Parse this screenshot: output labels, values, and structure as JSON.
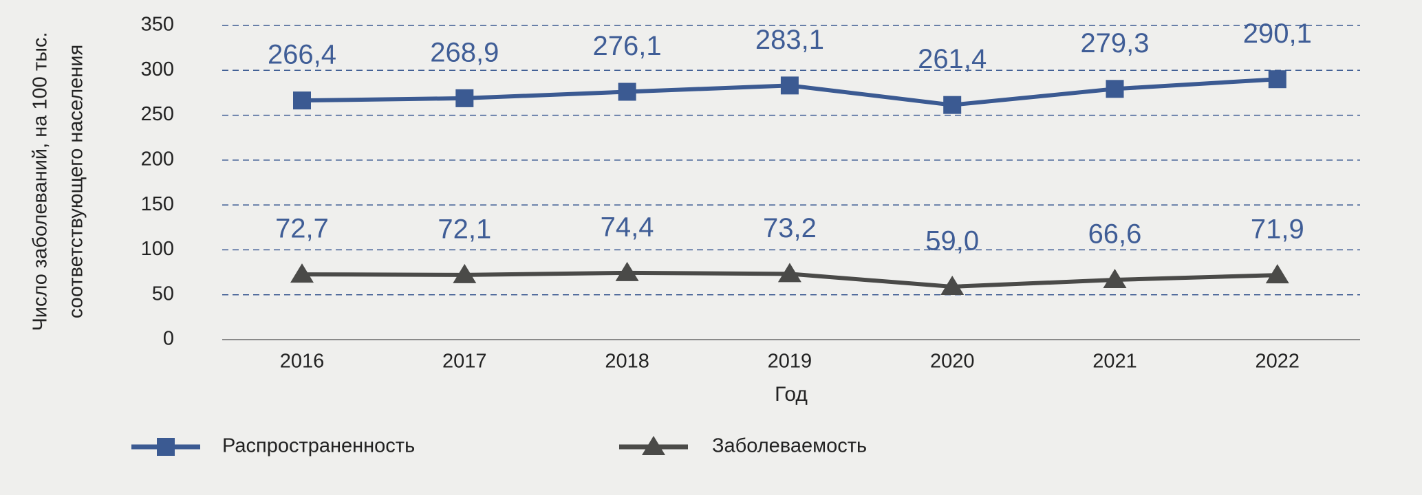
{
  "chart_data": {
    "type": "line",
    "ylabel": [
      "Число заболеваний, на 100 тыс.",
      "соответствующего населения"
    ],
    "xlabel": "Год",
    "categories": [
      "2016",
      "2017",
      "2018",
      "2019",
      "2020",
      "2021",
      "2022"
    ],
    "series": [
      {
        "name": "Распространенность",
        "color": "#3b5a92",
        "marker": "square",
        "values": [
          266.4,
          268.9,
          276.1,
          283.1,
          261.4,
          279.3,
          290.1
        ],
        "value_labels": [
          "266,4",
          "268,9",
          "276,1",
          "283,1",
          "261,4",
          "279,3",
          "290,1"
        ]
      },
      {
        "name": "Заболеваемость",
        "color": "#4a4a48",
        "marker": "triangle",
        "values": [
          72.7,
          72.1,
          74.4,
          73.2,
          59.0,
          66.6,
          71.9
        ],
        "value_labels": [
          "72,7",
          "72,1",
          "74,4",
          "73,2",
          "59,0",
          "66,6",
          "71,9"
        ]
      }
    ],
    "ylim": [
      0,
      350
    ],
    "yticks": [
      0,
      50,
      100,
      150,
      200,
      250,
      300,
      350
    ],
    "grid": true
  }
}
